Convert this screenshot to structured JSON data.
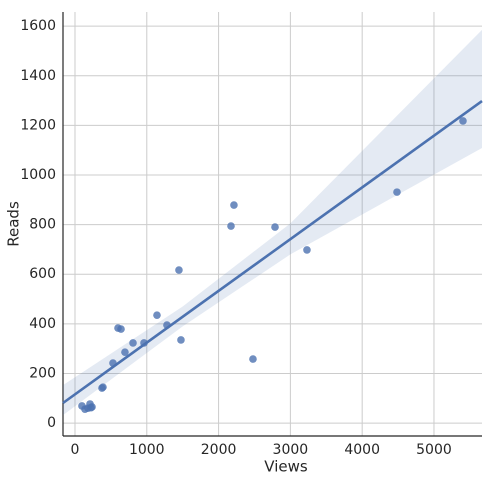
{
  "chart_data": {
    "type": "regplot",
    "x_label": "Views",
    "y_label": "Reads",
    "x": [
      97,
      139,
      181,
      209,
      237,
      223,
      390,
      376,
      529,
      599,
      641,
      696,
      808,
      961,
      1142,
      1281,
      1448,
      1476,
      2173,
      2214,
      2479,
      2786,
      3231,
      4485,
      5404
    ],
    "values": [
      69,
      56,
      60,
      77,
      65,
      62,
      145,
      141,
      242,
      383,
      379,
      286,
      323,
      323,
      435,
      395,
      617,
      335,
      794,
      879,
      258,
      790,
      698,
      931,
      1218
    ],
    "color": "#4c72b0",
    "regression": {
      "x": [
        -167,
        5669
      ],
      "y": [
        81,
        1298
      ]
    },
    "ci": {
      "x": [
        -167,
        1500,
        3000,
        5669
      ],
      "lower": [
        32,
        390,
        680,
        1109
      ],
      "upper": [
        153,
        470,
        805,
        1585
      ]
    },
    "xlim": [
      -167,
      5669
    ],
    "ylim": [
      -52,
      1657
    ],
    "xticks": [
      0,
      1000,
      2000,
      3000,
      4000,
      5000
    ],
    "yticks": [
      0,
      200,
      400,
      600,
      800,
      1000,
      1200,
      1400,
      1600
    ],
    "grid": true
  }
}
